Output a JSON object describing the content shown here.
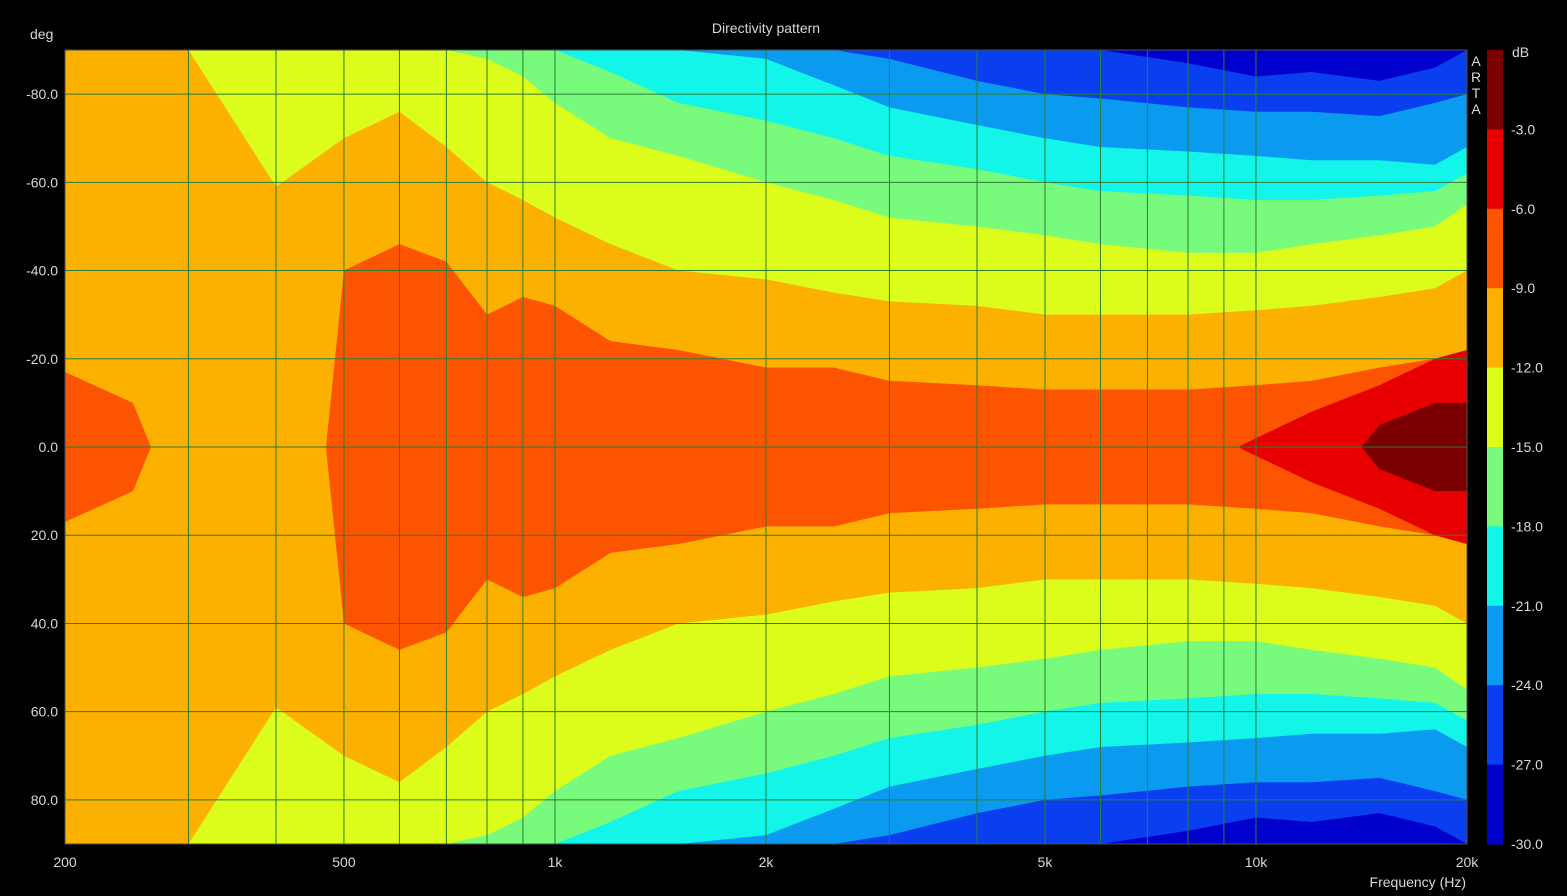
{
  "chart_data": {
    "type": "heatmap",
    "title": "Directivity pattern",
    "xlabel": "Frequency (Hz)",
    "ylabel": "deg",
    "colorbar_label": "dB",
    "watermark": "ARTA",
    "x_scale": "log",
    "xlim": [
      200,
      20000
    ],
    "ylim": [
      -90,
      90
    ],
    "x_ticks": [
      200,
      500,
      1000,
      2000,
      5000,
      10000,
      20000
    ],
    "x_tick_labels": [
      "200",
      "500",
      "1k",
      "2k",
      "5k",
      "10k",
      "20k"
    ],
    "y_ticks": [
      -80,
      -60,
      -40,
      -20,
      0,
      20,
      40,
      60,
      80
    ],
    "y_tick_labels": [
      "-80.0",
      "-60.0",
      "-40.0",
      "-20.0",
      "0.0",
      "20.0",
      "40.0",
      "60.0",
      "80.0"
    ],
    "grid": true,
    "color_levels": [
      -30,
      -27,
      -24,
      -21,
      -18,
      -15,
      -12,
      -9,
      -6,
      -3,
      0
    ],
    "colorbar_tick_labels": [
      "-3.0",
      "-6.0",
      "-9.0",
      "-12.0",
      "-15.0",
      "-18.0",
      "-21.0",
      "-24.0",
      "-27.0",
      "-30.0"
    ],
    "colors": [
      "#0000cc",
      "#0a3ff0",
      "#0a9bf0",
      "#12f5e8",
      "#78fb7c",
      "#dcfc1c",
      "#fcb000",
      "#fc5400",
      "#e80000",
      "#7a0000"
    ],
    "contours": {
      "frequencies": [
        200,
        250,
        300,
        400,
        500,
        600,
        700,
        800,
        900,
        1000,
        1200,
        1500,
        2000,
        2500,
        3000,
        4000,
        5000,
        6000,
        8000,
        10000,
        12000,
        15000,
        18000,
        20000
      ],
      "boundaries_deg": {
        "-3": [
          null,
          null,
          null,
          null,
          null,
          null,
          null,
          null,
          null,
          null,
          null,
          null,
          null,
          null,
          null,
          null,
          null,
          null,
          null,
          null,
          null,
          5,
          10,
          10
        ],
        "-6": [
          null,
          null,
          null,
          null,
          null,
          null,
          null,
          null,
          null,
          null,
          null,
          null,
          null,
          null,
          null,
          null,
          null,
          null,
          null,
          2,
          8,
          14,
          20,
          22
        ],
        "-9": [
          17,
          10,
          null,
          null,
          40,
          46,
          42,
          30,
          34,
          32,
          24,
          22,
          18,
          18,
          15,
          14,
          13,
          13,
          13,
          14,
          15,
          18,
          20,
          22
        ],
        "-12": [
          90,
          90,
          90,
          59,
          70,
          76,
          68,
          60,
          56,
          52,
          46,
          40,
          38,
          35,
          33,
          32,
          30,
          30,
          30,
          31,
          32,
          34,
          36,
          40
        ],
        "-15": [
          90,
          90,
          90,
          90,
          90,
          90,
          90,
          88,
          84,
          78,
          70,
          66,
          60,
          56,
          52,
          50,
          48,
          46,
          44,
          44,
          46,
          48,
          50,
          55
        ],
        "-18": [
          90,
          90,
          90,
          90,
          90,
          90,
          90,
          90,
          90,
          90,
          85,
          78,
          74,
          70,
          66,
          63,
          60,
          58,
          57,
          56,
          56,
          57,
          58,
          62
        ],
        "-21": [
          90,
          90,
          90,
          90,
          90,
          90,
          90,
          90,
          90,
          90,
          90,
          90,
          88,
          82,
          77,
          73,
          70,
          68,
          67,
          66,
          65,
          65,
          64,
          68
        ],
        "-24": [
          90,
          90,
          90,
          90,
          90,
          90,
          90,
          90,
          90,
          90,
          90,
          90,
          90,
          90,
          88,
          83,
          80,
          79,
          77,
          76,
          76,
          75,
          78,
          80
        ],
        "-27": [
          90,
          90,
          90,
          90,
          90,
          90,
          90,
          90,
          90,
          90,
          90,
          90,
          90,
          90,
          90,
          90,
          90,
          90,
          87,
          84,
          85,
          83,
          86,
          90
        ]
      }
    }
  }
}
